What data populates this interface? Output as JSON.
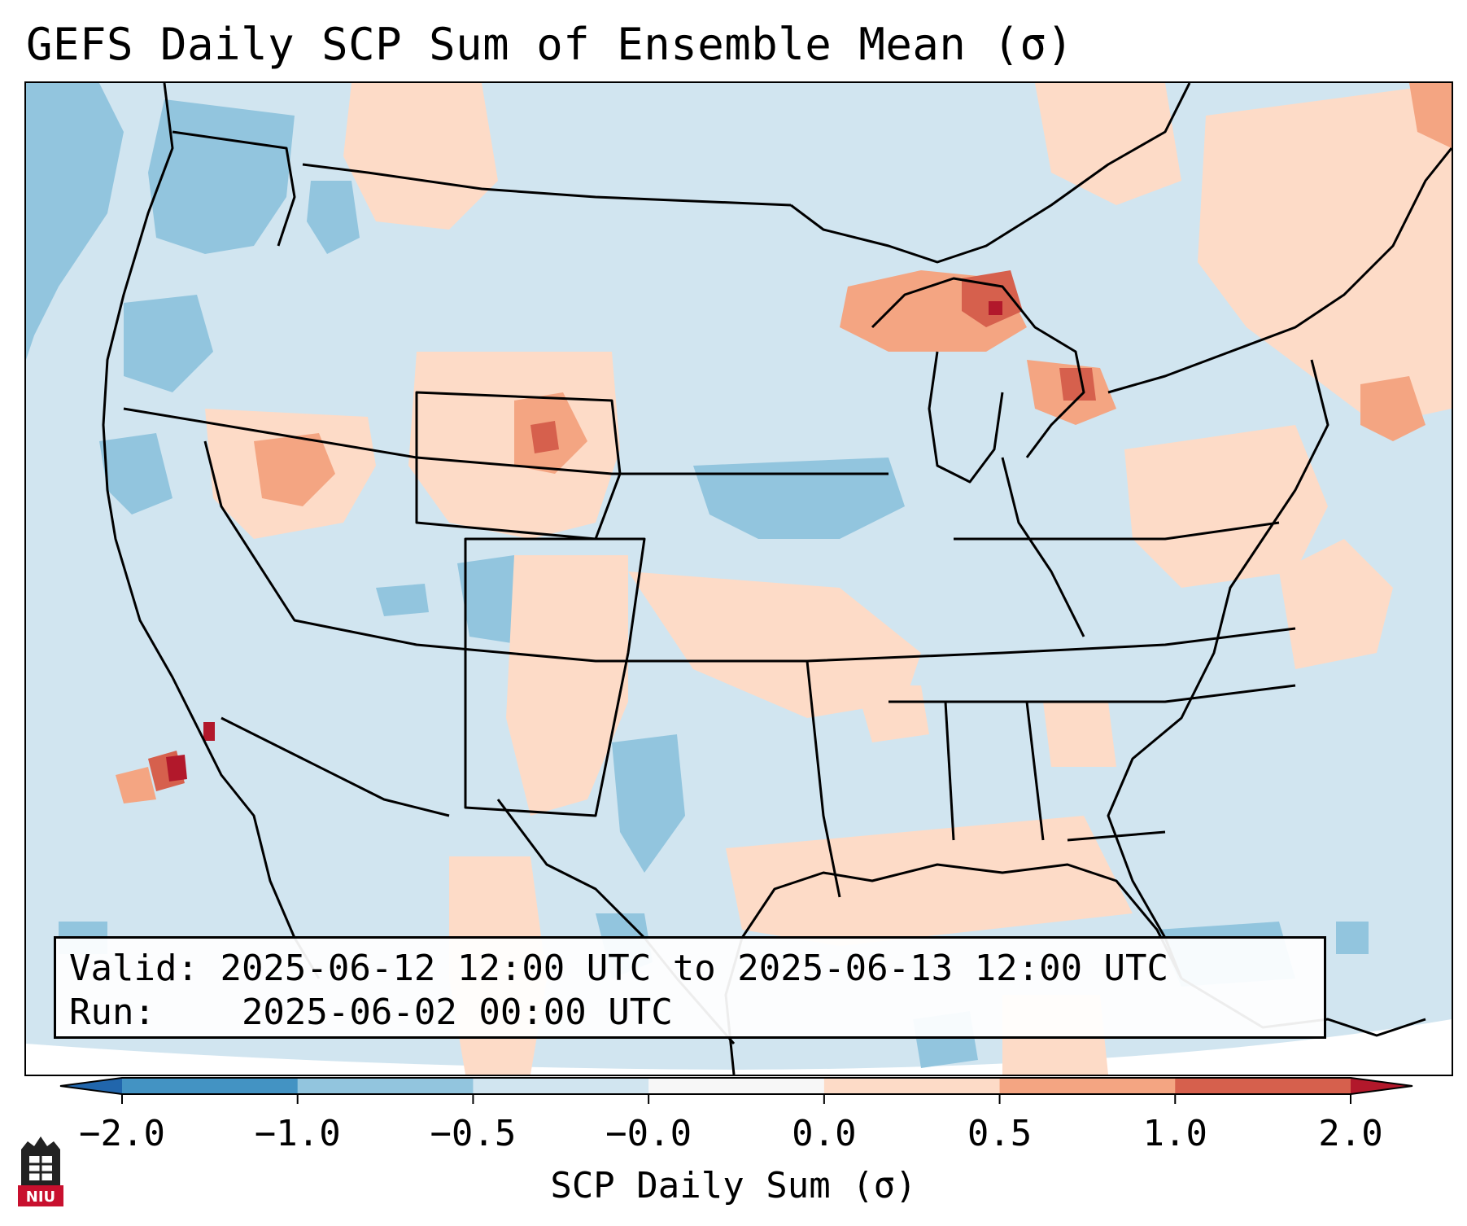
{
  "title": "GEFS Daily SCP Sum of Ensemble Mean (σ)",
  "info": {
    "valid_label": "Valid:",
    "valid_value": "2025-06-12 12:00 UTC to 2025-06-13 12:00 UTC",
    "run_label": "Run:",
    "run_value": "2025-06-02 00:00 UTC"
  },
  "colorbar": {
    "label": "SCP Daily Sum (σ)",
    "ticks": [
      "−2.0",
      "−1.0",
      "−0.5",
      "−0.0",
      "0.0",
      "0.5",
      "1.0",
      "2.0"
    ],
    "bins": [
      {
        "from": -2.0,
        "to": -1.0,
        "color": "#4393c3"
      },
      {
        "from": -1.0,
        "to": -0.5,
        "color": "#92c5de"
      },
      {
        "from": -0.5,
        "to": -0.0,
        "color": "#d1e5f0"
      },
      {
        "from": -0.0,
        "to": 0.0,
        "color": "#f7f7f7"
      },
      {
        "from": 0.0,
        "to": 0.5,
        "color": "#fddbc7"
      },
      {
        "from": 0.5,
        "to": 1.0,
        "color": "#f4a582"
      },
      {
        "from": 1.0,
        "to": 2.0,
        "color": "#d6604d"
      }
    ],
    "under_color": "#2166ac",
    "over_color": "#b2182b"
  },
  "colors": {
    "background": "#d1e5f0",
    "neg_moderate": "#92c5de",
    "pos_weak": "#fddbc7",
    "pos_moderate": "#f4a582",
    "pos_strong": "#d6604d",
    "pos_extreme": "#b2182b",
    "outside": "#ffffff",
    "coast_outline": "#000000"
  },
  "logo": {
    "text": "NIU",
    "color": "#c8102e"
  }
}
